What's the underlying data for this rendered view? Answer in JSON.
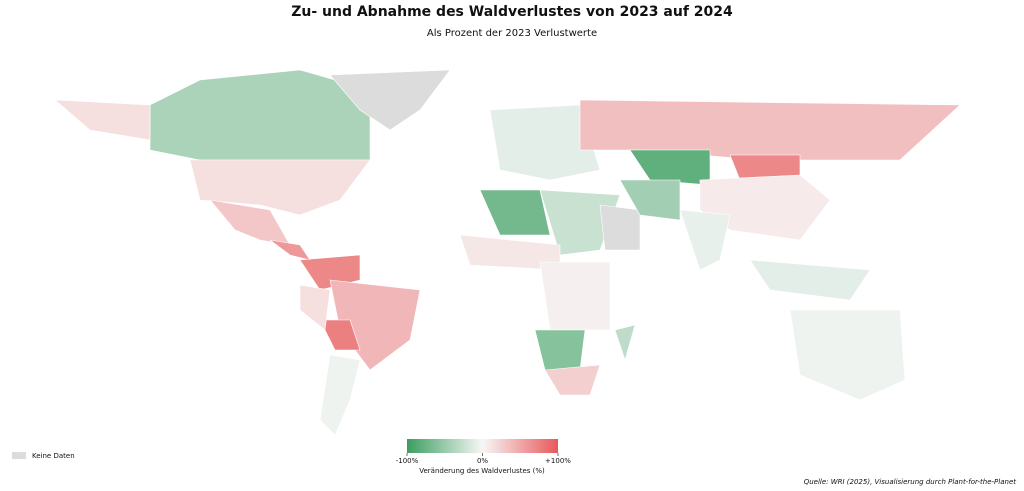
{
  "chart_data": {
    "type": "choropleth",
    "title": "Zu- und Abnahme des Waldverlustes von 2023 auf 2024",
    "subtitle": "Als Prozent der 2023 Verlustwerte",
    "values": [
      -40,
      15,
      15,
      null,
      30,
      60,
      70,
      40,
      75,
      15,
      -5,
      -10,
      35,
      -80,
      70,
      8,
      -70,
      -25,
      null,
      -45,
      -8,
      10,
      5,
      -60,
      25,
      -10,
      -5,
      -30
    ],
    "colorscale": [
      "#3a9e5f",
      "#f7f7f7",
      "#e8585a"
    ],
    "clim": [
      -100,
      100
    ],
    "cticks": [
      {
        "value": -100,
        "label": "-100%"
      },
      {
        "value": 0,
        "label": "0%"
      },
      {
        "value": 100,
        "label": "+100%"
      }
    ],
    "colorbar_label": "Veränderung des Waldverlustes (%)",
    "nodata_label": "Keine Daten",
    "nodata_color": "#dcdcdc",
    "source": "Quelle: WRI (2025), Visualisierung durch Plant-for-the-Planet"
  }
}
